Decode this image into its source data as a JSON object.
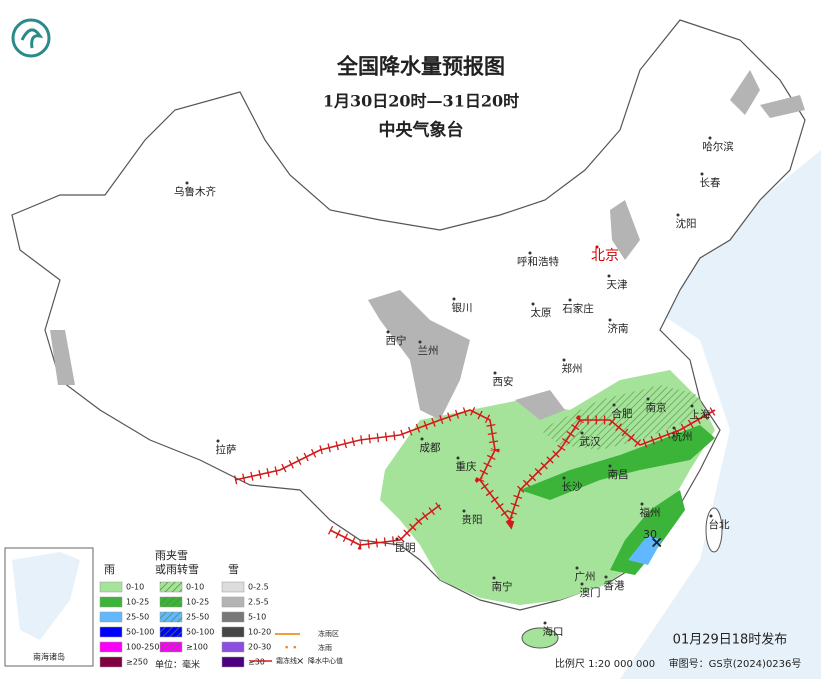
{
  "header": {
    "title": "全国降水量预报图",
    "time": "1月30日20时—31日20时",
    "agency": "中央气象台"
  },
  "cities": [
    "乌鲁木齐",
    "哈尔滨",
    "长春",
    "沈阳",
    "北京",
    "呼和浩特",
    "天津",
    "银川",
    "太原",
    "石家庄",
    "西宁",
    "兰州",
    "济南",
    "郑州",
    "西安",
    "合肥",
    "南京",
    "上海",
    "杭州",
    "武汉",
    "成都",
    "重庆",
    "长沙",
    "南昌",
    "拉萨",
    "贵阳",
    "福州",
    "台北",
    "昆明",
    "南宁",
    "广州",
    "澳门",
    "香港",
    "海口"
  ],
  "center_value": "30",
  "legend": {
    "rain": {
      "title": [
        "雨"
      ],
      "items": [
        {
          "label": "0-10",
          "color": "#a6e39a"
        },
        {
          "label": "10-25",
          "color": "#3cb339"
        },
        {
          "label": "25-50",
          "color": "#61b8ff"
        },
        {
          "label": "50-100",
          "color": "#0000fe"
        },
        {
          "label": "100-250",
          "color": "#fa00fa"
        },
        {
          "label": "≥250",
          "color": "#800040"
        }
      ]
    },
    "mixed": {
      "title": [
        "雨夹雪",
        "或雨转雪"
      ],
      "items": [
        {
          "label": "0-10",
          "color": "#a6e39a"
        },
        {
          "label": "10-25",
          "color": "#3cb339"
        },
        {
          "label": "25-50",
          "color": "#61b8ff"
        },
        {
          "label": "50-100",
          "color": "#0000fe"
        },
        {
          "label": "≥100",
          "color": "#fa00fa"
        }
      ]
    },
    "snow": {
      "title": [
        "雪"
      ],
      "items": [
        {
          "label": "0-2.5",
          "color": "#dcdcdc"
        },
        {
          "label": "2.5-5",
          "color": "#b4b4b4"
        },
        {
          "label": "5-10",
          "color": "#787878"
        },
        {
          "label": "10-20",
          "color": "#464646"
        },
        {
          "label": "20-30",
          "color": "#8a4fe0"
        },
        {
          "label": "≥30",
          "color": "#4b0082"
        }
      ]
    },
    "unit": "单位：毫米",
    "lines": [
      "冻雨区",
      "冻雨",
      "霜冻线",
      "降水中心值"
    ]
  },
  "inset": "南海诸岛",
  "footer": {
    "issued": "01月29日18时发布",
    "scale": "比例尺 1:20 000 000",
    "review": "审图号：GS京(2024)0236号"
  }
}
